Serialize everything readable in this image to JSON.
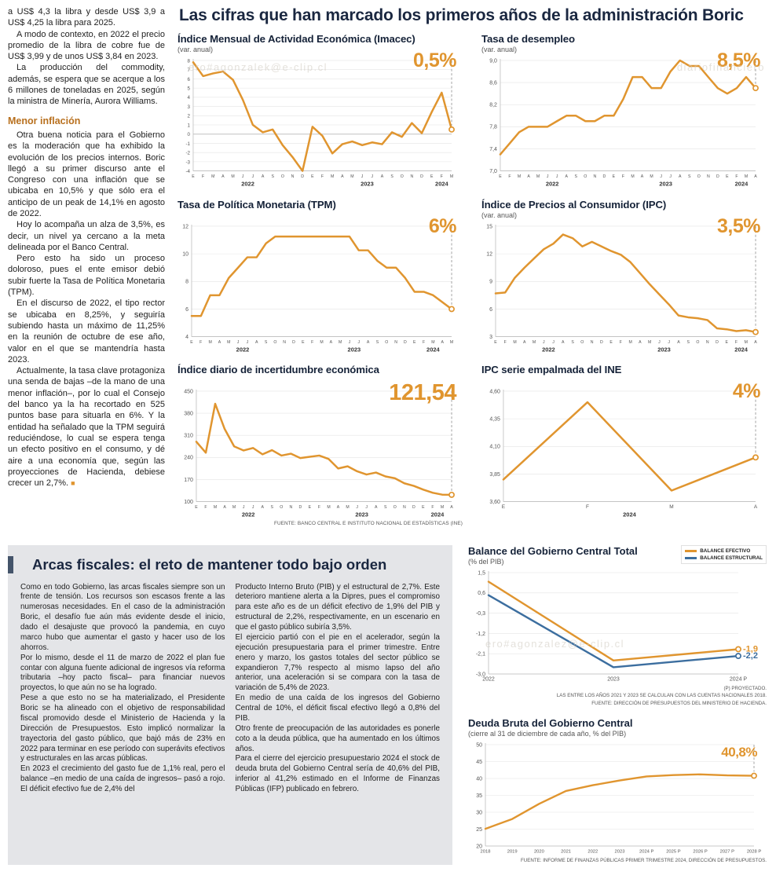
{
  "watermarks": {
    "top_right": "diariofinanciero",
    "charts": "ero#agonzalek@e-clip.cl",
    "fiscal": "ero#agonzalez@e-clip.cl"
  },
  "main_title": "Las cifras que han marcado los primeros años de la administración Boric",
  "article": {
    "paragraphs": [
      "a US$ 4,3 la libra y desde US$ 3,9 a US$ 4,25 la libra para 2025.",
      "A modo de contexto, en 2022 el precio promedio de la libra de cobre fue de US$ 3,99 y de unos US$ 3,84 en 2023.",
      "La producción del commodity, además, se espera que se acerque a los 6 millones de toneladas en 2025, según la ministra de Minería, Aurora Williams."
    ],
    "subhead": "Menor inflación",
    "paragraphs2": [
      "Otra buena noticia para el Gobierno es la moderación que ha exhibido la evolución de los precios internos. Boric llegó a su primer discurso ante el Congreso con una inflación que se ubicaba en 10,5% y que sólo era el anticipo de un peak de 14,1% en agosto de 2022.",
      "Hoy lo acompaña un alza de 3,5%, es decir, un nivel ya cercano a la meta delineada por el Banco Central.",
      "Pero esto ha sido un proceso doloroso, pues el ente emisor debió subir fuerte la Tasa de Política Monetaria (TPM).",
      "En el discurso de 2022, el tipo rector se ubicaba en 8,25%, y seguiría subiendo hasta un máximo de 11,25% en la reunión de octubre de ese año, valor en el que se mantendría hasta 2023.",
      "Actualmente, la tasa clave protagoniza una senda de bajas –de la mano de una menor inflación–, por lo cual el Consejo del banco ya la ha recortado en 525 puntos base para situarla en 6%. Y la entidad ha señalado que la TPM seguirá reduciéndose, lo cual se espera tenga un efecto positivo en el consumo, y dé aire a una economía que, según las proyecciones de Hacienda, debiese crecer un 2,7%."
    ],
    "end_mark": "■"
  },
  "top_source": "FUENTE: BANCO CENTRAL E INSTITUTO NACIONAL DE ESTADÍSTICAS (INE)",
  "fiscal": {
    "title": "Arcas fiscales: el reto de mantener todo bajo orden",
    "col1": [
      "Como en todo Gobierno, las arcas fiscales siempre son un frente de tensión. Los recursos son escasos frente a las numerosas necesidades. En el caso de la administración Boric, el desafío fue aún más evidente desde el inicio, dado el desajuste que provocó la pandemia, en cuyo marco hubo que aumentar el gasto y hacer uso de los ahorros.",
      "Por lo mismo, desde el 11 de marzo de 2022 el plan fue contar con alguna fuente adicional de ingresos vía reforma tributaria –hoy pacto fiscal– para financiar nuevos proyectos, lo que aún no se ha logrado.",
      "Pese a que esto no se ha materializado, el Presidente Boric se ha alineado con el objetivo de responsabilidad fiscal promovido desde el Ministerio de Hacienda y la Dirección de Presupuestos. Esto implicó normalizar la trayectoria del gasto público, que bajó más de 23% en 2022 para terminar en ese período con superávits efectivos y estructurales en las arcas públicas.",
      "En 2023 el crecimiento del gasto fue de 1,1% real, pero el balance –en medio de una caída de ingresos– pasó a rojo. El déficit efectivo fue de 2,4% del"
    ],
    "col2": [
      "Producto Interno Bruto (PIB) y el estructural de 2,7%. Este deterioro mantiene alerta a la Dipres, pues el compromiso para este año es de un déficit efectivo de 1,9% del PIB y estructural de 2,2%, respectivamente, en un escenario en que el gasto público subiría 3,5%.",
      "El ejercicio partió con el pie en el acelerador, según la ejecución presupuestaria para el primer trimestre. Entre enero y marzo, los gastos totales del sector público se expandieron 7,7% respecto al mismo lapso del año anterior, una aceleración si se compara con la tasa de variación de 5,4% de 2023.",
      "En medio de una caída de los ingresos del Gobierno Central de 10%, el déficit fiscal efectivo llegó a 0,8% del PIB.",
      "Otro frente de preocupación de las autoridades es ponerle coto a la deuda pública, que ha aumentado en los últimos años.",
      "Para el cierre del ejercicio presupuestario 2024 el stock de deuda bruta del Gobierno Central sería de 40,6% del PIB, inferior al 41,2% estimado en el Informe de Finanzas Públicas (IFP) publicado en febrero."
    ]
  },
  "balance_notes": [
    "(P) PROYECTADO.",
    "LAS ENTRE LOS AÑOS 2021 Y 2023 SE CALCULAN CON LAS CUENTAS NACIONALES 2018.",
    "FUENTE: DIRECCIÓN DE PRESUPUESTOS DEL MINISTERIO DE HACIENDA."
  ],
  "deuda_note": "FUENTE: INFORME DE FINANZAS PÚBLICAS PRIMER TRIMESTRE 2024, DIRECCIÓN DE PRESUPUESTOS.",
  "chart_data": [
    {
      "type": "line",
      "title": "Índice Mensual de Actividad Económica (Imacec)",
      "subtitle": "(var. anual)",
      "big_label": "0,5%",
      "y_min": -4,
      "y_max": 8,
      "pad_l": 20,
      "y_font": 6.2,
      "y_ticks": [
        {
          "v": 8,
          "t": "8"
        },
        {
          "v": 7,
          "t": "7"
        },
        {
          "v": 6,
          "t": "6"
        },
        {
          "v": 5,
          "t": "5"
        },
        {
          "v": 4,
          "t": "4"
        },
        {
          "v": 3,
          "t": "3"
        },
        {
          "v": 2,
          "t": "2"
        },
        {
          "v": 1,
          "t": "1"
        },
        {
          "v": 0,
          "t": "0"
        },
        {
          "v": -1,
          "t": "-1"
        },
        {
          "v": -2,
          "t": "-2"
        },
        {
          "v": -3,
          "t": "-3"
        },
        {
          "v": -4,
          "t": "-4"
        }
      ],
      "x_labels": [
        "E",
        "F",
        "M",
        "A",
        "M",
        "J",
        "J",
        "A",
        "S",
        "O",
        "N",
        "D",
        "E",
        "F",
        "M",
        "A",
        "M",
        "J",
        "J",
        "A",
        "S",
        "O",
        "N",
        "D",
        "E",
        "F",
        "M"
      ],
      "x_groups": [
        {
          "label": "2022",
          "span": 12
        },
        {
          "label": "2023",
          "span": 12
        },
        {
          "label": "2024",
          "span": 3
        }
      ],
      "series": [
        {
          "name": "Imacec var. anual",
          "color": "#E0952F",
          "width": 2.5,
          "dashed_end": true,
          "end_circle": true,
          "values": [
            7.8,
            6.3,
            6.6,
            6.8,
            5.9,
            3.7,
            1.0,
            0.2,
            0.5,
            -1.2,
            -2.5,
            -4.0,
            0.8,
            -0.2,
            -2.1,
            -1.1,
            -0.8,
            -1.2,
            -0.9,
            -1.1,
            0.2,
            -0.3,
            1.2,
            0.1,
            2.4,
            4.5,
            0.5
          ]
        }
      ]
    },
    {
      "type": "line",
      "title": "Tasa de desempleo",
      "subtitle": "(var. anual)",
      "big_label": "8,5%",
      "y_min": 7.0,
      "y_max": 9.0,
      "pad_l": 24,
      "y_ticks": [
        {
          "v": 9.0,
          "t": "9,0"
        },
        {
          "v": 8.6,
          "t": "8,6"
        },
        {
          "v": 8.2,
          "t": "8,2"
        },
        {
          "v": 7.8,
          "t": "7,8"
        },
        {
          "v": 7.4,
          "t": "7,4"
        },
        {
          "v": 7.0,
          "t": "7,0"
        }
      ],
      "x_labels": [
        "E",
        "F",
        "M",
        "A",
        "M",
        "J",
        "J",
        "A",
        "S",
        "O",
        "N",
        "D",
        "E",
        "F",
        "M",
        "A",
        "M",
        "J",
        "J",
        "A",
        "S",
        "O",
        "N",
        "D",
        "E",
        "F",
        "M",
        "A"
      ],
      "x_groups": [
        {
          "label": "2022",
          "span": 12
        },
        {
          "label": "2023",
          "span": 12
        },
        {
          "label": "2024",
          "span": 4
        }
      ],
      "series": [
        {
          "name": "Tasa de desempleo",
          "color": "#E0952F",
          "width": 2.5,
          "dashed_end": true,
          "end_circle": true,
          "values": [
            7.3,
            7.5,
            7.7,
            7.8,
            7.8,
            7.8,
            7.9,
            8.0,
            8.0,
            7.9,
            7.9,
            8.0,
            8.0,
            8.3,
            8.7,
            8.7,
            8.5,
            8.5,
            8.8,
            9.0,
            8.9,
            8.9,
            8.7,
            8.5,
            8.4,
            8.5,
            8.7,
            8.5
          ]
        }
      ]
    },
    {
      "type": "line",
      "title": "Tasa de Política Monetaria (TPM)",
      "subtitle": "",
      "big_label": "6%",
      "y_min": 4,
      "y_max": 12,
      "pad_l": 18,
      "y_ticks": [
        {
          "v": 12,
          "t": "12"
        },
        {
          "v": 10,
          "t": "10"
        },
        {
          "v": 8,
          "t": "8"
        },
        {
          "v": 6,
          "t": "6"
        },
        {
          "v": 4,
          "t": "4"
        }
      ],
      "x_labels": [
        "E",
        "F",
        "M",
        "A",
        "M",
        "J",
        "J",
        "A",
        "S",
        "O",
        "N",
        "D",
        "E",
        "F",
        "M",
        "A",
        "M",
        "J",
        "J",
        "A",
        "S",
        "O",
        "N",
        "D",
        "E",
        "F",
        "M",
        "A",
        "M"
      ],
      "x_groups": [
        {
          "label": "2022",
          "span": 12
        },
        {
          "label": "2023",
          "span": 12
        },
        {
          "label": "2024",
          "span": 5
        }
      ],
      "series": [
        {
          "name": "TPM",
          "color": "#E0952F",
          "width": 2.5,
          "dashed_end": true,
          "end_circle": true,
          "values": [
            5.5,
            5.5,
            7.0,
            7.0,
            8.25,
            9.0,
            9.75,
            9.75,
            10.75,
            11.25,
            11.25,
            11.25,
            11.25,
            11.25,
            11.25,
            11.25,
            11.25,
            11.25,
            10.25,
            10.25,
            9.5,
            9.0,
            9.0,
            8.25,
            7.25,
            7.25,
            7.0,
            6.5,
            6.0
          ]
        }
      ]
    },
    {
      "type": "line",
      "title": "Índice de Precios al Consumidor (IPC)",
      "subtitle": "(var. anual)",
      "big_label": "3,5%",
      "y_min": 3,
      "y_max": 15,
      "pad_l": 18,
      "y_ticks": [
        {
          "v": 15,
          "t": "15"
        },
        {
          "v": 12,
          "t": "12"
        },
        {
          "v": 9,
          "t": "9"
        },
        {
          "v": 6,
          "t": "6"
        },
        {
          "v": 3,
          "t": "3"
        }
      ],
      "x_labels": [
        "E",
        "F",
        "M",
        "A",
        "M",
        "J",
        "J",
        "A",
        "S",
        "O",
        "N",
        "D",
        "E",
        "F",
        "M",
        "A",
        "M",
        "J",
        "J",
        "A",
        "S",
        "O",
        "N",
        "D",
        "E",
        "F",
        "M",
        "A"
      ],
      "x_groups": [
        {
          "label": "2022",
          "span": 12
        },
        {
          "label": "2023",
          "span": 12
        },
        {
          "label": "2024",
          "span": 4
        }
      ],
      "series": [
        {
          "name": "IPC var. anual",
          "color": "#E0952F",
          "width": 2.5,
          "dashed_end": true,
          "end_circle": true,
          "values": [
            7.7,
            7.8,
            9.4,
            10.5,
            11.5,
            12.5,
            13.1,
            14.1,
            13.7,
            12.8,
            13.3,
            12.8,
            12.3,
            11.9,
            11.1,
            9.9,
            8.7,
            7.6,
            6.5,
            5.3,
            5.1,
            5.0,
            4.8,
            3.9,
            3.8,
            3.6,
            3.7,
            3.5
          ]
        }
      ]
    },
    {
      "type": "line",
      "title": "Índice diario de incertidumbre económica",
      "subtitle": "",
      "big_label": "121,54",
      "y_min": 100,
      "y_max": 450,
      "pad_l": 24,
      "y_ticks": [
        {
          "v": 450,
          "t": "450"
        },
        {
          "v": 380,
          "t": "380"
        },
        {
          "v": 310,
          "t": "310"
        },
        {
          "v": 240,
          "t": "240"
        },
        {
          "v": 170,
          "t": "170"
        },
        {
          "v": 100,
          "t": "100"
        }
      ],
      "x_labels": [
        "E",
        "F",
        "M",
        "A",
        "M",
        "J",
        "J",
        "A",
        "S",
        "O",
        "N",
        "D",
        "E",
        "F",
        "M",
        "A",
        "M",
        "J",
        "J",
        "A",
        "S",
        "O",
        "N",
        "D",
        "E",
        "F",
        "M",
        "A"
      ],
      "x_groups": [
        {
          "label": "2022",
          "span": 12
        },
        {
          "label": "2023",
          "span": 12
        },
        {
          "label": "2024",
          "span": 4
        }
      ],
      "series": [
        {
          "name": "Incertidumbre económica",
          "color": "#E0952F",
          "width": 2.5,
          "dashed_end": true,
          "end_circle": true,
          "values": [
            290,
            255,
            410,
            330,
            275,
            262,
            270,
            250,
            263,
            246,
            252,
            238,
            242,
            246,
            235,
            205,
            212,
            196,
            186,
            192,
            180,
            174,
            158,
            150,
            138,
            128,
            122,
            121.54
          ]
        }
      ]
    },
    {
      "type": "line",
      "title": "IPC serie empalmada del INE",
      "subtitle": "",
      "big_label": "4%",
      "y_min": 3.6,
      "y_max": 4.6,
      "pad_l": 28,
      "x_font": 6.5,
      "y_ticks": [
        {
          "v": 4.6,
          "t": "4,60"
        },
        {
          "v": 4.35,
          "t": "4,35"
        },
        {
          "v": 4.1,
          "t": "4,10"
        },
        {
          "v": 3.85,
          "t": "3,85"
        },
        {
          "v": 3.6,
          "t": "3,60"
        }
      ],
      "x_labels": [
        "E",
        "F",
        "M",
        "A"
      ],
      "x_groups": [
        {
          "label": "2024",
          "span": 4
        }
      ],
      "series": [
        {
          "name": "IPC serie empalmada",
          "color": "#E0952F",
          "width": 2.5,
          "dashed_end": true,
          "end_circle": true,
          "values": [
            3.8,
            4.5,
            3.7,
            4.0
          ]
        }
      ]
    },
    {
      "type": "line",
      "title": "Balance del Gobierno Central Total",
      "subtitle": "(% del PIB)",
      "big_label": "",
      "legend": [
        {
          "label": "BALANCE EFECTIVO",
          "color": "#E0952F"
        },
        {
          "label": "BALANCE ESTRUCTURAL",
          "color": "#3C6E9F"
        }
      ],
      "y_min": -3.0,
      "y_max": 1.5,
      "pad_l": 26,
      "pad_r": 36,
      "x_font": 7,
      "y_ticks": [
        {
          "v": 1.5,
          "t": "1,5"
        },
        {
          "v": 0.6,
          "t": "0,6"
        },
        {
          "v": -0.3,
          "t": "-0,3"
        },
        {
          "v": -1.2,
          "t": "-1,2"
        },
        {
          "v": -2.1,
          "t": "-2,1"
        },
        {
          "v": -3.0,
          "t": "-3,0"
        }
      ],
      "x_labels": [
        "2022",
        "2023",
        "2024 P"
      ],
      "series": [
        {
          "name": "Balance efectivo",
          "color": "#E0952F",
          "width": 2.4,
          "end_circle": true,
          "end_label": "-1,9",
          "values": [
            1.1,
            -2.4,
            -1.9
          ]
        },
        {
          "name": "Balance estructural",
          "color": "#3C6E9F",
          "width": 2.4,
          "end_circle": true,
          "end_label": "-2,2",
          "values": [
            0.5,
            -2.7,
            -2.2
          ]
        }
      ]
    },
    {
      "type": "line",
      "title": "Deuda Bruta del Gobierno Central",
      "subtitle": "(cierre al 31 de diciembre de cada año, % del PIB)",
      "big_label": "40,8%",
      "y_min": 20,
      "y_max": 50,
      "pad_l": 22,
      "pad_r": 16,
      "x_font": 5.8,
      "y_ticks": [
        {
          "v": 50,
          "t": "50"
        },
        {
          "v": 45,
          "t": "45"
        },
        {
          "v": 40,
          "t": "40"
        },
        {
          "v": 35,
          "t": "35"
        },
        {
          "v": 30,
          "t": "30"
        },
        {
          "v": 25,
          "t": "25"
        },
        {
          "v": 20,
          "t": "20"
        }
      ],
      "x_labels": [
        "2018",
        "2019",
        "2020",
        "2021",
        "2022",
        "2023",
        "2024 P",
        "2025 P",
        "2026 P",
        "2027 P",
        "2028 P"
      ],
      "series": [
        {
          "name": "Deuda bruta",
          "color": "#E0952F",
          "width": 2.4,
          "dashed_end": true,
          "end_circle": true,
          "values": [
            25.1,
            28.0,
            32.5,
            36.3,
            38.0,
            39.4,
            40.6,
            41.0,
            41.2,
            40.9,
            40.8
          ]
        }
      ]
    }
  ]
}
